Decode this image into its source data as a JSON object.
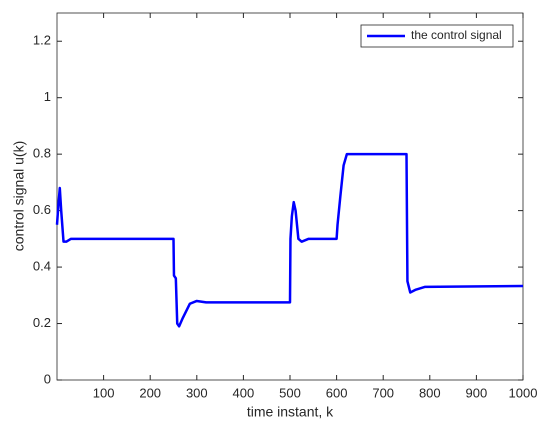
{
  "chart_data": {
    "type": "line",
    "xlabel": "time instant, k",
    "ylabel": "control signal u(k)",
    "x": [
      0,
      3,
      6,
      9,
      14,
      20,
      30,
      250,
      251,
      255,
      258,
      262,
      270,
      285,
      300,
      320,
      500,
      501,
      504,
      508,
      512,
      518,
      525,
      540,
      600,
      602,
      608,
      615,
      622,
      750,
      752,
      758,
      770,
      790,
      1000
    ],
    "series": [
      {
        "name": "the control signal",
        "color": "#0000ff",
        "values": [
          0.55,
          0.62,
          0.68,
          0.6,
          0.49,
          0.49,
          0.5,
          0.5,
          0.37,
          0.36,
          0.2,
          0.19,
          0.22,
          0.27,
          0.28,
          0.275,
          0.275,
          0.5,
          0.58,
          0.63,
          0.6,
          0.5,
          0.49,
          0.5,
          0.5,
          0.55,
          0.65,
          0.76,
          0.8,
          0.8,
          0.35,
          0.31,
          0.32,
          0.33,
          0.333
        ]
      }
    ],
    "xlim": [
      0,
      1000
    ],
    "xticks": [
      100,
      200,
      300,
      400,
      500,
      600,
      700,
      800,
      900,
      1000
    ],
    "ylim": [
      0,
      1.3
    ],
    "yticks": [
      0,
      0.2,
      0.4,
      0.6,
      0.8,
      1,
      1.2
    ],
    "legend": "upper right"
  }
}
